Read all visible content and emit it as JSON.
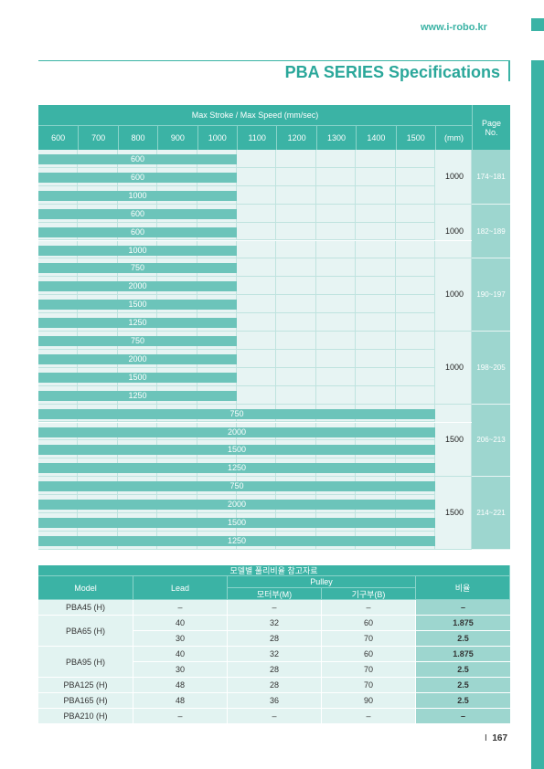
{
  "header": {
    "site_url": "www.i-robo.kr",
    "title": "PBA SERIES Specifications"
  },
  "spec_table": {
    "group_header": "Max Stroke / Max Speed (mm/sec)",
    "page_header": "Page No.",
    "unit_header": "(mm)",
    "strokes": [
      "600",
      "700",
      "800",
      "900",
      "1000",
      "1100",
      "1200",
      "1300",
      "1400",
      "1500"
    ],
    "groups": [
      {
        "bars": [
          {
            "stroke": 1000,
            "label": "600"
          },
          {
            "stroke": 1000,
            "label": "600"
          },
          {
            "stroke": 1000,
            "label": "1000"
          }
        ],
        "max_stroke": "1000",
        "page": "174~181"
      },
      {
        "bars": [
          {
            "stroke": 1000,
            "label": "600"
          },
          {
            "stroke": 1000,
            "label": "600"
          },
          {
            "stroke": 1000,
            "label": "1000"
          }
        ],
        "max_stroke": "1000",
        "page": "182~189"
      },
      {
        "bars": [
          {
            "stroke": 1000,
            "label": "750"
          },
          {
            "stroke": 1000,
            "label": "2000"
          },
          {
            "stroke": 1000,
            "label": "1500"
          },
          {
            "stroke": 1000,
            "label": "1250"
          }
        ],
        "max_stroke": "1000",
        "page": "190~197"
      },
      {
        "bars": [
          {
            "stroke": 1000,
            "label": "750"
          },
          {
            "stroke": 1000,
            "label": "2000"
          },
          {
            "stroke": 1000,
            "label": "1500"
          },
          {
            "stroke": 1000,
            "label": "1250"
          }
        ],
        "max_stroke": "1000",
        "page": "198~205"
      },
      {
        "bars": [
          {
            "stroke": 1500,
            "label": "750"
          },
          {
            "stroke": 1500,
            "label": "2000"
          },
          {
            "stroke": 1500,
            "label": "1500"
          },
          {
            "stroke": 1500,
            "label": "1250"
          }
        ],
        "max_stroke": "1500",
        "page": "206~213"
      },
      {
        "bars": [
          {
            "stroke": 1500,
            "label": "750"
          },
          {
            "stroke": 1500,
            "label": "2000"
          },
          {
            "stroke": 1500,
            "label": "1500"
          },
          {
            "stroke": 1500,
            "label": "1250"
          }
        ],
        "max_stroke": "1500",
        "page": "214~221"
      }
    ]
  },
  "pulley_table": {
    "title": "모델별 풀리비율 참고자료",
    "col_model": "Model",
    "col_lead": "Lead",
    "col_pulley": "Pulley",
    "col_motor": "모터부(M)",
    "col_mech": "기구부(B)",
    "col_ratio": "비율",
    "rows": [
      {
        "model": "PBA45 (H)",
        "entries": [
          {
            "lead": "–",
            "motor": "–",
            "mech": "–",
            "ratio": "–"
          }
        ]
      },
      {
        "model": "PBA65 (H)",
        "entries": [
          {
            "lead": "40",
            "motor": "32",
            "mech": "60",
            "ratio": "1.875"
          },
          {
            "lead": "30",
            "motor": "28",
            "mech": "70",
            "ratio": "2.5"
          }
        ]
      },
      {
        "model": "PBA95 (H)",
        "entries": [
          {
            "lead": "40",
            "motor": "32",
            "mech": "60",
            "ratio": "1.875"
          },
          {
            "lead": "30",
            "motor": "28",
            "mech": "70",
            "ratio": "2.5"
          }
        ]
      },
      {
        "model": "PBA125 (H)",
        "entries": [
          {
            "lead": "48",
            "motor": "28",
            "mech": "70",
            "ratio": "2.5"
          }
        ]
      },
      {
        "model": "PBA165 (H)",
        "entries": [
          {
            "lead": "48",
            "motor": "36",
            "mech": "90",
            "ratio": "2.5"
          }
        ]
      },
      {
        "model": "PBA210 (H)",
        "entries": [
          {
            "lead": "–",
            "motor": "–",
            "mech": "–",
            "ratio": "–"
          }
        ]
      }
    ]
  },
  "footer": {
    "separator": "I",
    "page_number": "167"
  }
}
